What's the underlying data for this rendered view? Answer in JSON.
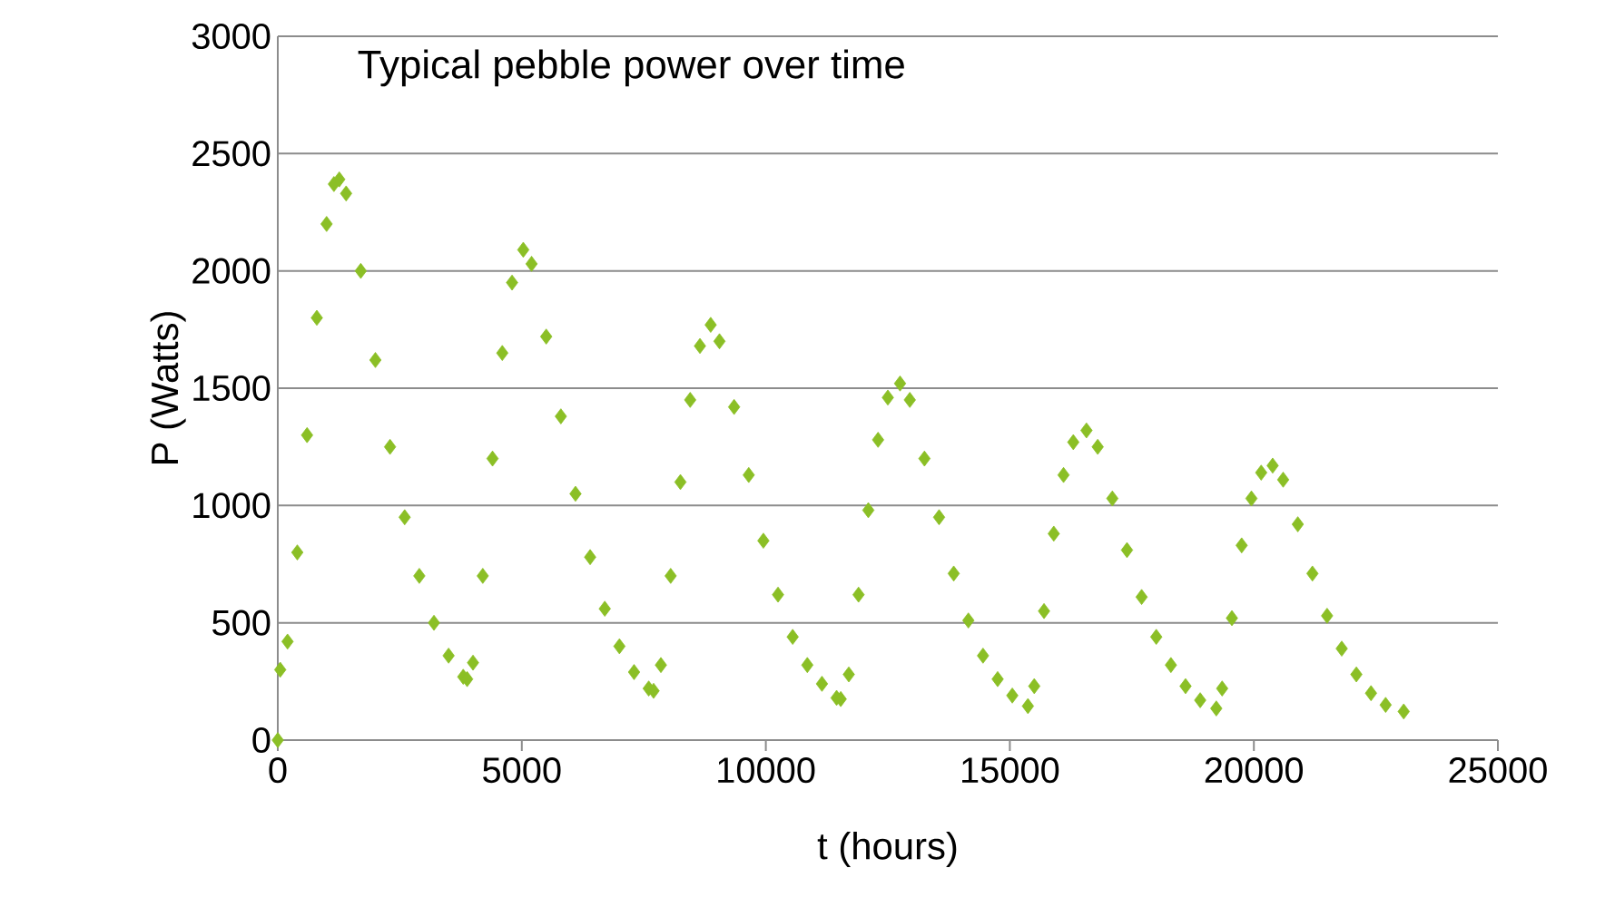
{
  "chart_data": {
    "type": "scatter",
    "title": "Typical pebble power over time",
    "xlabel": "t (hours)",
    "ylabel": "P (Watts)",
    "xlim": [
      0,
      25000
    ],
    "xticks": [
      0,
      5000,
      10000,
      15000,
      20000,
      25000
    ],
    "ylim": [
      0,
      3000
    ],
    "yticks": [
      0,
      500,
      1000,
      1500,
      2000,
      2500,
      3000
    ],
    "grid": "y",
    "marker": "diamond",
    "series": [
      {
        "color": "#8bbf26",
        "x": [
          0,
          50,
          200,
          400,
          600,
          800,
          1000,
          1150,
          1260,
          1400,
          1700,
          2000,
          2300,
          2600,
          2900,
          3200,
          3500,
          3800,
          3880,
          4000,
          4200,
          4400,
          4600,
          4800,
          5030,
          5200,
          5500,
          5800,
          6100,
          6400,
          6700,
          7000,
          7300,
          7600,
          7700,
          7850,
          8050,
          8250,
          8450,
          8650,
          8870,
          9050,
          9350,
          9650,
          9950,
          10250,
          10550,
          10850,
          11150,
          11450,
          11535,
          11700,
          11900,
          12100,
          12300,
          12500,
          12750,
          12950,
          13250,
          13550,
          13850,
          14150,
          14450,
          14750,
          15050,
          15370,
          15500,
          15700,
          15900,
          16100,
          16300,
          16570,
          16800,
          17100,
          17400,
          17700,
          18000,
          18300,
          18600,
          18900,
          19230,
          19350,
          19550,
          19750,
          19950,
          20150,
          20385,
          20600,
          20900,
          21200,
          21500,
          21800,
          22100,
          22400,
          22700,
          23070
        ],
        "values": [
          0,
          300,
          420,
          800,
          1300,
          1800,
          2200,
          2370,
          2390,
          2330,
          2000,
          1620,
          1250,
          950,
          700,
          500,
          360,
          270,
          260,
          330,
          700,
          1200,
          1650,
          1950,
          2090,
          2030,
          1720,
          1380,
          1050,
          780,
          560,
          400,
          290,
          220,
          210,
          320,
          700,
          1100,
          1450,
          1680,
          1770,
          1700,
          1420,
          1130,
          850,
          620,
          440,
          320,
          240,
          180,
          175,
          280,
          620,
          980,
          1280,
          1460,
          1520,
          1450,
          1200,
          950,
          710,
          510,
          360,
          260,
          190,
          145,
          230,
          550,
          880,
          1130,
          1270,
          1320,
          1250,
          1030,
          810,
          610,
          440,
          320,
          230,
          170,
          135,
          220,
          520,
          830,
          1030,
          1140,
          1170,
          1110,
          920,
          710,
          530,
          390,
          280,
          200,
          150,
          122
        ]
      }
    ]
  }
}
